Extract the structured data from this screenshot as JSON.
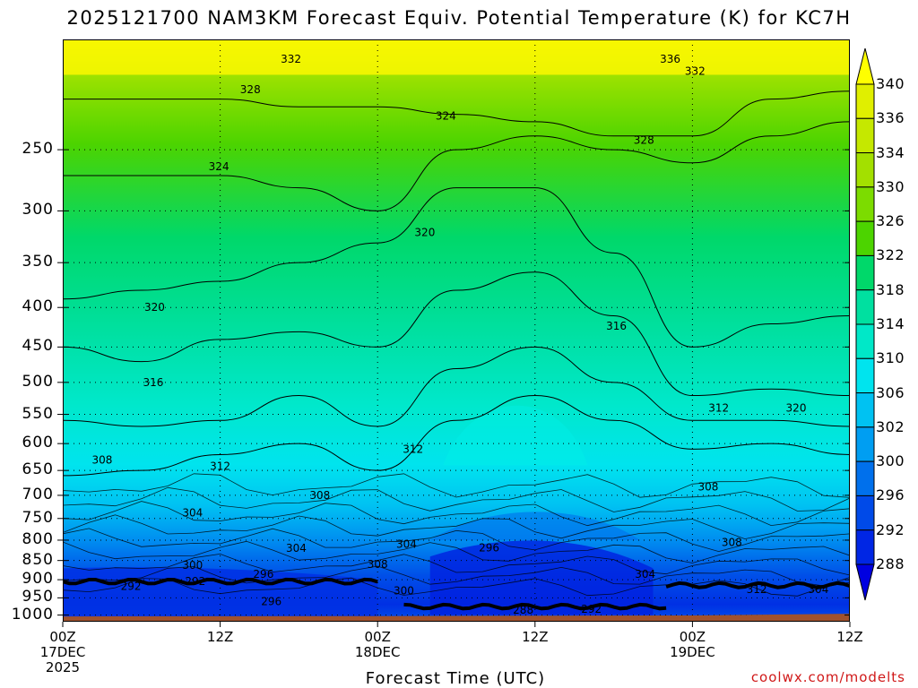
{
  "title": "2025121700 NAM3KM Forecast Equiv. Potential Temperature (K) for KC7H",
  "xlabel": "Forecast Time (UTC)",
  "credit": "coolwx.com/modelts",
  "chart_data": {
    "type": "heatmap",
    "title": "2025121700 NAM3KM Forecast Equiv. Potential Temperature (K) for KC7H",
    "xlabel": "Forecast Time (UTC)",
    "ylabel": "",
    "y_scale": "log",
    "ylim": [
      1020,
      180
    ],
    "y_ticks": [
      250,
      300,
      350,
      400,
      450,
      500,
      550,
      600,
      650,
      700,
      750,
      800,
      850,
      900,
      950,
      1000
    ],
    "x_hours_range": [
      0,
      60
    ],
    "x_ticks": [
      {
        "hour": 0,
        "label": "00Z",
        "sub1": "17DEC",
        "sub2": "2025"
      },
      {
        "hour": 12,
        "label": "12Z",
        "sub1": "",
        "sub2": ""
      },
      {
        "hour": 24,
        "label": "00Z",
        "sub1": "18DEC",
        "sub2": ""
      },
      {
        "hour": 36,
        "label": "12Z",
        "sub1": "",
        "sub2": ""
      },
      {
        "hour": 48,
        "label": "00Z",
        "sub1": "19DEC",
        "sub2": ""
      },
      {
        "hour": 60,
        "label": "12Z",
        "sub1": "",
        "sub2": ""
      }
    ],
    "time_hours": [
      0,
      6,
      12,
      18,
      24,
      30,
      36,
      42,
      48,
      54,
      60
    ],
    "contour_levels_K": [
      308,
      312,
      316,
      320,
      324,
      328
    ],
    "level_heights_hPa": [
      [
        660,
        650,
        620,
        600,
        650,
        560,
        520,
        560,
        610,
        600,
        620
      ],
      [
        560,
        570,
        560,
        520,
        570,
        480,
        450,
        500,
        560,
        560,
        570
      ],
      [
        450,
        470,
        440,
        430,
        450,
        380,
        360,
        410,
        520,
        510,
        520
      ],
      [
        390,
        380,
        370,
        350,
        330,
        280,
        280,
        340,
        450,
        420,
        410
      ],
      [
        270,
        270,
        270,
        280,
        300,
        250,
        240,
        250,
        260,
        240,
        230
      ],
      [
        215,
        215,
        215,
        220,
        220,
        225,
        230,
        240,
        240,
        215,
        210
      ]
    ],
    "contour_labels": [
      {
        "text": "332",
        "hour": 17.4,
        "p": 191
      },
      {
        "text": "328",
        "hour": 14.3,
        "p": 209
      },
      {
        "text": "336",
        "hour": 46.3,
        "p": 191
      },
      {
        "text": "332",
        "hour": 48.2,
        "p": 198
      },
      {
        "text": "324",
        "hour": 29.2,
        "p": 226
      },
      {
        "text": "328",
        "hour": 44.3,
        "p": 243
      },
      {
        "text": "324",
        "hour": 11.9,
        "p": 263
      },
      {
        "text": "320",
        "hour": 27.6,
        "p": 320
      },
      {
        "text": "320",
        "hour": 7.0,
        "p": 400
      },
      {
        "text": "316",
        "hour": 42.2,
        "p": 423
      },
      {
        "text": "316",
        "hour": 6.9,
        "p": 500
      },
      {
        "text": "312",
        "hour": 50.0,
        "p": 540
      },
      {
        "text": "320",
        "hour": 55.9,
        "p": 540
      },
      {
        "text": "312",
        "hour": 26.7,
        "p": 610
      },
      {
        "text": "308",
        "hour": 3.0,
        "p": 630
      },
      {
        "text": "312",
        "hour": 12.0,
        "p": 642
      },
      {
        "text": "308",
        "hour": 49.2,
        "p": 683
      },
      {
        "text": "308",
        "hour": 19.6,
        "p": 700
      },
      {
        "text": "304",
        "hour": 9.9,
        "p": 738
      },
      {
        "text": "304",
        "hour": 17.8,
        "p": 820
      },
      {
        "text": "304",
        "hour": 26.2,
        "p": 810
      },
      {
        "text": "296",
        "hour": 32.5,
        "p": 818
      },
      {
        "text": "308",
        "hour": 51.0,
        "p": 805
      },
      {
        "text": "308",
        "hour": 24.0,
        "p": 860
      },
      {
        "text": "300",
        "hour": 9.9,
        "p": 862
      },
      {
        "text": "296",
        "hour": 15.3,
        "p": 885
      },
      {
        "text": "304",
        "hour": 44.4,
        "p": 885
      },
      {
        "text": "292",
        "hour": 10.1,
        "p": 905
      },
      {
        "text": "292",
        "hour": 5.2,
        "p": 918
      },
      {
        "text": "300",
        "hour": 26.0,
        "p": 930
      },
      {
        "text": "312",
        "hour": 52.9,
        "p": 927
      },
      {
        "text": "304",
        "hour": 57.6,
        "p": 927
      },
      {
        "text": "296",
        "hour": 15.9,
        "p": 960
      },
      {
        "text": "288",
        "hour": 35.1,
        "p": 985
      },
      {
        "text": "292",
        "hour": 40.3,
        "p": 982
      }
    ],
    "colorbar": {
      "levels": [
        340,
        336,
        334,
        330,
        326,
        322,
        318,
        314,
        310,
        306,
        302,
        300,
        296,
        292,
        288
      ],
      "colors": [
        "#ffff00",
        "#e0ef00",
        "#c5e800",
        "#a3e000",
        "#7cdc00",
        "#4cd400",
        "#00d86a",
        "#00e0a0",
        "#00e8c8",
        "#00e4ee",
        "#00c2f2",
        "#009ef2",
        "#0070ec",
        "#004ae8",
        "#0026e4",
        "#0000e0"
      ]
    },
    "terrain_color": "#a0522d",
    "grid": true
  }
}
